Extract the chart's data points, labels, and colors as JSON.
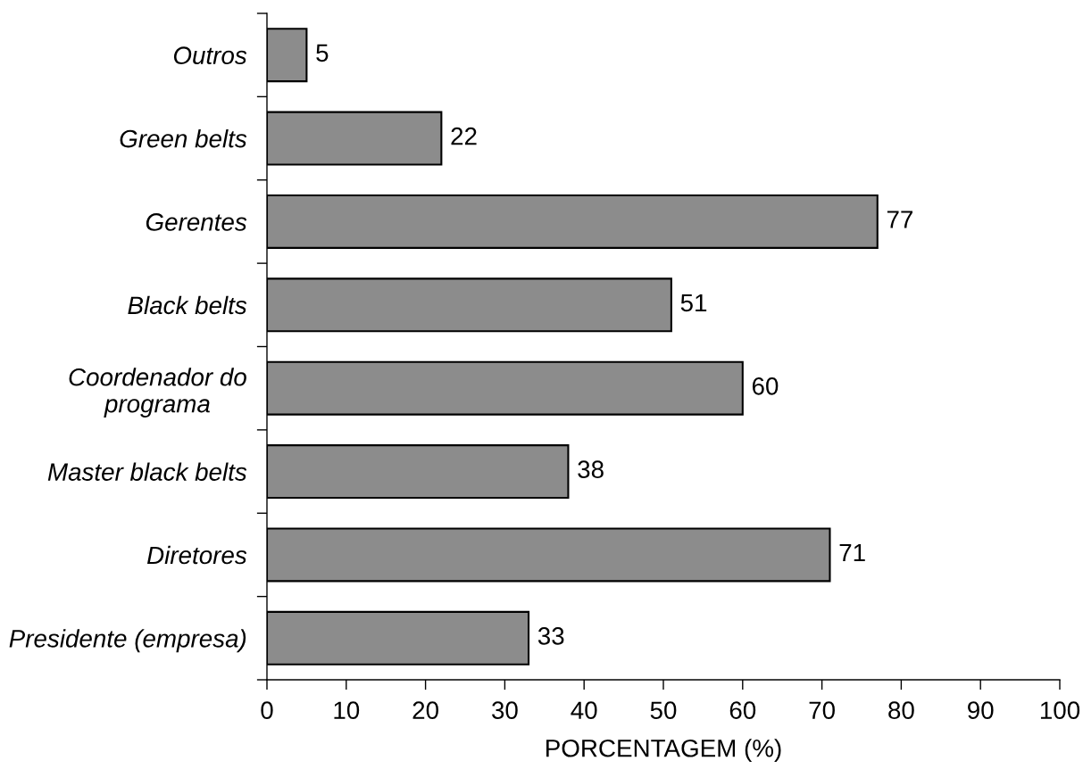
{
  "chart_data": {
    "type": "bar",
    "orientation": "horizontal",
    "categories": [
      "Outros",
      "Green belts",
      "Gerentes",
      "Black belts",
      "Coordenador do\nprograma",
      "Master black belts",
      "Diretores",
      "Presidente (empresa)"
    ],
    "values": [
      5,
      22,
      77,
      51,
      60,
      38,
      71,
      33
    ],
    "color": "#8c8c8c",
    "xlim": [
      0,
      100
    ],
    "xticks": [
      0,
      10,
      20,
      30,
      40,
      50,
      60,
      70,
      80,
      90,
      100
    ],
    "xlabel": "PORCENTAGEM (%)",
    "data_labels": true
  }
}
